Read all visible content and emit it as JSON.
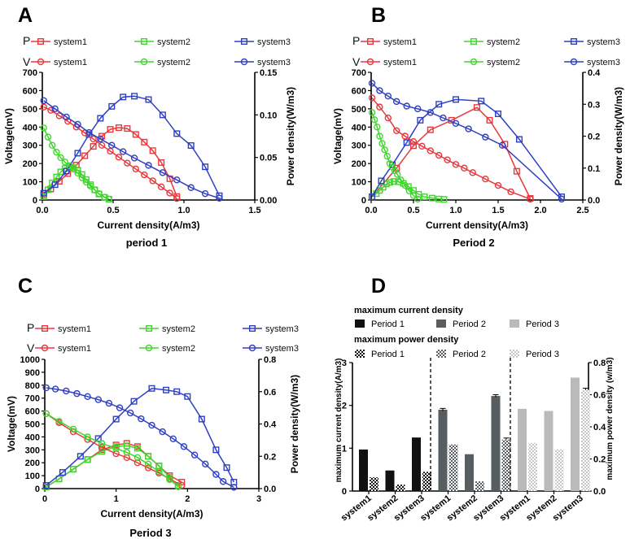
{
  "chart_data": [
    {
      "panel": "A",
      "type": "line",
      "caption": "period 1",
      "xlabel": "Current density(A/m3)",
      "ylabel": "Voltage(mV)",
      "y2label": "Power density(W/m3)",
      "xlim": [
        0,
        1.5
      ],
      "ylim": [
        0,
        700
      ],
      "y2lim": [
        0,
        0.15
      ],
      "xticks": [
        "0.0",
        "0.5",
        "1.0",
        "1.5"
      ],
      "yticks": [
        "0",
        "100",
        "200",
        "300",
        "400",
        "500",
        "600",
        "700"
      ],
      "y2ticks": [
        "0.00",
        "0.05",
        "0.10",
        "0.15"
      ],
      "legend": {
        "p_tag": "P",
        "v_tag": "V",
        "names": [
          "system1",
          "system2",
          "system3"
        ]
      },
      "series": [
        {
          "name": "system1",
          "kind": "P",
          "color": "#e8383d",
          "marker": "square",
          "axis": "right",
          "x": [
            0.01,
            0.06,
            0.12,
            0.18,
            0.24,
            0.3,
            0.36,
            0.42,
            0.48,
            0.54,
            0.6,
            0.66,
            0.72,
            0.78,
            0.84,
            0.9,
            0.95
          ],
          "y": [
            0.006,
            0.013,
            0.022,
            0.031,
            0.041,
            0.052,
            0.063,
            0.075,
            0.083,
            0.085,
            0.084,
            0.077,
            0.068,
            0.058,
            0.044,
            0.025,
            0.004
          ]
        },
        {
          "name": "system2",
          "kind": "P",
          "color": "#40d62e",
          "marker": "square",
          "axis": "right",
          "x": [
            0.01,
            0.04,
            0.07,
            0.1,
            0.13,
            0.16,
            0.19,
            0.22,
            0.25,
            0.28,
            0.31,
            0.34,
            0.37,
            0.4,
            0.44,
            0.47
          ],
          "y": [
            0.004,
            0.012,
            0.02,
            0.027,
            0.033,
            0.037,
            0.039,
            0.038,
            0.035,
            0.03,
            0.024,
            0.018,
            0.012,
            0.007,
            0.003,
            0.001
          ]
        },
        {
          "name": "system3",
          "kind": "P",
          "color": "#2f3fc2",
          "marker": "square",
          "axis": "right",
          "x": [
            0.01,
            0.09,
            0.17,
            0.25,
            0.33,
            0.41,
            0.49,
            0.57,
            0.65,
            0.75,
            0.85,
            0.95,
            1.05,
            1.15,
            1.25
          ],
          "y": [
            0.008,
            0.018,
            0.034,
            0.055,
            0.077,
            0.096,
            0.11,
            0.121,
            0.122,
            0.118,
            0.1,
            0.078,
            0.064,
            0.039,
            0.005
          ]
        },
        {
          "name": "system1",
          "kind": "V",
          "color": "#e8383d",
          "marker": "circle",
          "axis": "left",
          "x": [
            0.01,
            0.06,
            0.12,
            0.18,
            0.24,
            0.3,
            0.36,
            0.42,
            0.48,
            0.54,
            0.6,
            0.66,
            0.72,
            0.78,
            0.84,
            0.9,
            0.95
          ],
          "y": [
            510,
            492,
            462,
            432,
            400,
            368,
            335,
            300,
            268,
            235,
            202,
            170,
            138,
            105,
            72,
            38,
            8
          ]
        },
        {
          "name": "system2",
          "kind": "V",
          "color": "#40d62e",
          "marker": "circle",
          "axis": "left",
          "x": [
            0.01,
            0.04,
            0.07,
            0.1,
            0.13,
            0.16,
            0.19,
            0.22,
            0.25,
            0.28,
            0.31,
            0.34,
            0.37,
            0.4,
            0.44,
            0.47
          ],
          "y": [
            395,
            345,
            300,
            262,
            232,
            208,
            188,
            170,
            148,
            122,
            98,
            76,
            55,
            35,
            15,
            5
          ]
        },
        {
          "name": "system3",
          "kind": "V",
          "color": "#2f3fc2",
          "marker": "circle",
          "axis": "left",
          "x": [
            0.01,
            0.09,
            0.17,
            0.25,
            0.33,
            0.41,
            0.49,
            0.57,
            0.65,
            0.75,
            0.85,
            0.95,
            1.05,
            1.15,
            1.25
          ],
          "y": [
            545,
            500,
            455,
            415,
            370,
            335,
            300,
            265,
            230,
            190,
            150,
            110,
            68,
            35,
            10
          ]
        }
      ]
    },
    {
      "panel": "B",
      "type": "line",
      "caption": "Period 2",
      "xlabel": "Current density(A/m3)",
      "ylabel": "Voltage(mV)",
      "y2label": "Power density(W/m3)",
      "xlim": [
        0,
        2.5
      ],
      "ylim": [
        0,
        700
      ],
      "y2lim": [
        0,
        0.4
      ],
      "xticks": [
        "0.0",
        "0.5",
        "1.0",
        "1.5",
        "2.0",
        "2.5"
      ],
      "yticks": [
        "0",
        "100",
        "200",
        "300",
        "400",
        "500",
        "600",
        "700"
      ],
      "y2ticks": [
        "0.0",
        "0.1",
        "0.2",
        "0.3",
        "0.4"
      ],
      "legend": {
        "p_tag": "P",
        "v_tag": "V",
        "names": [
          "system1",
          "system2",
          "system3"
        ]
      },
      "series": [
        {
          "name": "system1",
          "kind": "P",
          "color": "#e8383d",
          "marker": "square",
          "axis": "right",
          "x": [
            0.01,
            0.3,
            0.5,
            0.7,
            0.95,
            1.25,
            1.4,
            1.58,
            1.72,
            1.88
          ],
          "y": [
            0.01,
            0.1,
            0.17,
            0.22,
            0.25,
            0.29,
            0.25,
            0.175,
            0.09,
            0.005
          ]
        },
        {
          "name": "system2",
          "kind": "P",
          "color": "#40d62e",
          "marker": "square",
          "axis": "right",
          "x": [
            0.01,
            0.06,
            0.1,
            0.14,
            0.18,
            0.22,
            0.27,
            0.32,
            0.38,
            0.44,
            0.5,
            0.56,
            0.63,
            0.72,
            0.8,
            0.86
          ],
          "y": [
            0.01,
            0.02,
            0.03,
            0.04,
            0.05,
            0.055,
            0.058,
            0.057,
            0.052,
            0.042,
            0.03,
            0.018,
            0.01,
            0.006,
            0.003,
            0.002
          ]
        },
        {
          "name": "system3",
          "kind": "P",
          "color": "#2f3fc2",
          "marker": "square",
          "axis": "right",
          "x": [
            0.01,
            0.12,
            0.25,
            0.42,
            0.58,
            0.8,
            1.0,
            1.3,
            1.5,
            1.75,
            2.25
          ],
          "y": [
            0.01,
            0.06,
            0.11,
            0.18,
            0.25,
            0.3,
            0.315,
            0.31,
            0.27,
            0.19,
            0.01
          ]
        },
        {
          "name": "system1",
          "kind": "V",
          "color": "#e8383d",
          "marker": "circle",
          "axis": "left",
          "x": [
            0.01,
            0.1,
            0.2,
            0.3,
            0.4,
            0.5,
            0.6,
            0.7,
            0.8,
            0.9,
            1.0,
            1.1,
            1.2,
            1.35,
            1.5,
            1.65,
            1.88
          ],
          "y": [
            560,
            510,
            450,
            380,
            350,
            320,
            295,
            270,
            245,
            220,
            195,
            175,
            150,
            115,
            80,
            45,
            5
          ]
        },
        {
          "name": "system2",
          "kind": "V",
          "color": "#40d62e",
          "marker": "circle",
          "axis": "left",
          "x": [
            0.01,
            0.04,
            0.07,
            0.1,
            0.13,
            0.16,
            0.19,
            0.22,
            0.25,
            0.28,
            0.31,
            0.35,
            0.4,
            0.45,
            0.5,
            0.55
          ],
          "y": [
            480,
            440,
            400,
            350,
            310,
            275,
            240,
            200,
            180,
            160,
            140,
            110,
            80,
            50,
            25,
            5
          ]
        },
        {
          "name": "system3",
          "kind": "V",
          "color": "#2f3fc2",
          "marker": "circle",
          "axis": "left",
          "x": [
            0.01,
            0.1,
            0.2,
            0.3,
            0.42,
            0.55,
            0.7,
            0.85,
            1.0,
            1.15,
            1.35,
            1.55,
            2.25
          ],
          "y": [
            640,
            600,
            570,
            540,
            515,
            500,
            480,
            450,
            420,
            390,
            345,
            300,
            5
          ]
        }
      ]
    },
    {
      "panel": "C",
      "type": "line",
      "caption": "Period 3",
      "xlabel": "Current density(A/m3)",
      "ylabel": "Voltage(mV)",
      "y2label": "Power density(W/m3)",
      "xlim": [
        0,
        3
      ],
      "ylim": [
        0,
        1000
      ],
      "y2lim": [
        0,
        0.8
      ],
      "xticks": [
        "0",
        "1",
        "2",
        "3"
      ],
      "yticks": [
        "0",
        "100",
        "200",
        "300",
        "400",
        "500",
        "600",
        "700",
        "800",
        "900",
        "1000"
      ],
      "y2ticks": [
        "0.0",
        "0.2",
        "0.4",
        "0.6",
        "0.8"
      ],
      "legend": {
        "p_tag": "P",
        "v_tag": "V",
        "names": [
          "system1",
          "system2",
          "system3"
        ]
      },
      "series": [
        {
          "name": "system1",
          "kind": "P",
          "color": "#e8383d",
          "marker": "square",
          "axis": "right",
          "x": [
            0.02,
            0.2,
            0.4,
            0.6,
            0.8,
            1.0,
            1.15,
            1.3,
            1.45,
            1.6,
            1.75,
            1.92
          ],
          "y": [
            0.01,
            0.06,
            0.12,
            0.18,
            0.24,
            0.27,
            0.28,
            0.26,
            0.2,
            0.14,
            0.08,
            0.04
          ]
        },
        {
          "name": "system2",
          "kind": "P",
          "color": "#40d62e",
          "marker": "square",
          "axis": "right",
          "x": [
            0.02,
            0.2,
            0.4,
            0.6,
            0.8,
            1.0,
            1.15,
            1.3,
            1.45,
            1.6,
            1.75,
            1.87
          ],
          "y": [
            0.01,
            0.06,
            0.12,
            0.18,
            0.23,
            0.26,
            0.265,
            0.25,
            0.2,
            0.14,
            0.07,
            0.02
          ]
        },
        {
          "name": "system3",
          "kind": "P",
          "color": "#2f3fc2",
          "marker": "square",
          "axis": "right",
          "x": [
            0.02,
            0.25,
            0.5,
            0.75,
            1.0,
            1.25,
            1.5,
            1.7,
            1.85,
            2.0,
            2.2,
            2.4,
            2.55,
            2.65
          ],
          "y": [
            0.02,
            0.1,
            0.2,
            0.31,
            0.43,
            0.54,
            0.62,
            0.61,
            0.6,
            0.57,
            0.43,
            0.24,
            0.13,
            0.04
          ]
        },
        {
          "name": "system1",
          "kind": "V",
          "color": "#e8383d",
          "marker": "circle",
          "axis": "left",
          "x": [
            0.02,
            0.2,
            0.4,
            0.6,
            0.8,
            1.0,
            1.15,
            1.3,
            1.45,
            1.6,
            1.75,
            1.92
          ],
          "y": [
            580,
            510,
            440,
            380,
            320,
            270,
            240,
            200,
            160,
            120,
            75,
            25
          ]
        },
        {
          "name": "system2",
          "kind": "V",
          "color": "#40d62e",
          "marker": "circle",
          "axis": "left",
          "x": [
            0.02,
            0.2,
            0.4,
            0.6,
            0.8,
            1.0,
            1.15,
            1.3,
            1.45,
            1.6,
            1.75,
            1.87
          ],
          "y": [
            580,
            520,
            460,
            400,
            350,
            310,
            280,
            240,
            190,
            130,
            70,
            15
          ]
        },
        {
          "name": "system3",
          "kind": "V",
          "color": "#2f3fc2",
          "marker": "circle",
          "axis": "left",
          "x": [
            0.02,
            0.15,
            0.3,
            0.45,
            0.6,
            0.75,
            0.9,
            1.05,
            1.2,
            1.35,
            1.5,
            1.65,
            1.8,
            1.95,
            2.1,
            2.25,
            2.4,
            2.5,
            2.65
          ],
          "y": [
            780,
            770,
            755,
            735,
            712,
            688,
            660,
            625,
            585,
            540,
            490,
            440,
            385,
            325,
            260,
            190,
            110,
            55,
            10
          ]
        }
      ]
    },
    {
      "panel": "D",
      "type": "bar",
      "categories": [
        "system1",
        "system2",
        "system3",
        "system1",
        "system2",
        "system3",
        "system1",
        "system2",
        "system3"
      ],
      "ylabel": "maximum current density(A/m3)",
      "y2label": "maximum power density (w/m3)",
      "ylim": [
        0,
        3
      ],
      "y2lim": [
        0,
        0.8
      ],
      "yticks": [
        "0",
        "1",
        "2",
        "3"
      ],
      "y2ticks": [
        "0.0",
        "0.2",
        "0.4",
        "0.6",
        "0.8"
      ],
      "legend_headers": [
        "maximum current density",
        "maximum power density"
      ],
      "period_labels": [
        "Period 1",
        "Period 2",
        "Period 3"
      ],
      "series": [
        {
          "name": "maximum current density",
          "axis": "left",
          "colors": [
            "#111111",
            "#575e61",
            "#b9bbbb"
          ],
          "values": [
            0.97,
            0.48,
            1.25,
            1.9,
            0.86,
            2.22,
            1.92,
            1.87,
            2.65
          ],
          "errors": [
            0,
            0,
            0,
            0.03,
            0,
            0.03,
            0,
            0,
            0
          ]
        },
        {
          "name": "maximum power density",
          "axis": "right",
          "colors": [
            "#111111",
            "#575e61",
            "#c8c8c8"
          ],
          "values": [
            0.085,
            0.04,
            0.12,
            0.29,
            0.06,
            0.32,
            0.3,
            0.26,
            0.63
          ],
          "errors": [
            0,
            0,
            0,
            0,
            0,
            0.01,
            0,
            0,
            0.01
          ]
        }
      ]
    }
  ]
}
